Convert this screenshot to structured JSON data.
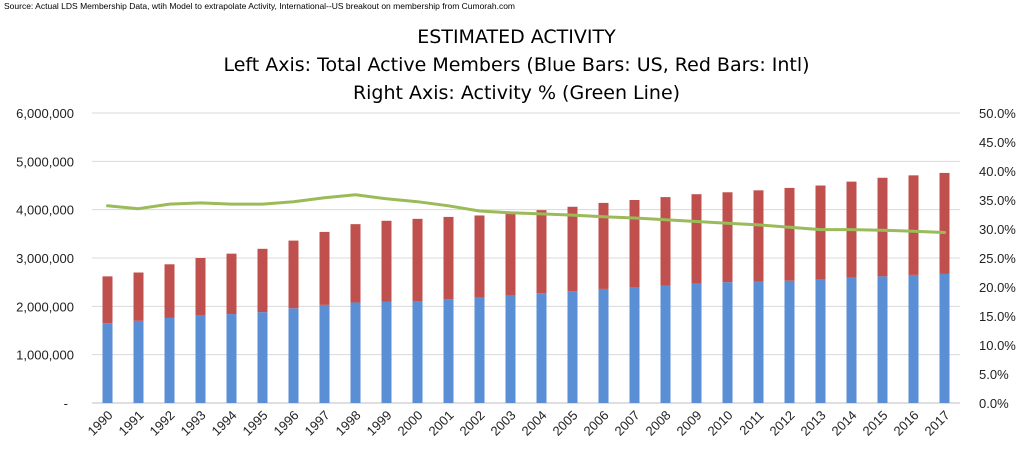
{
  "source_note": "Source: Actual LDS Membership Data, wtih Model to extrapolate Activity, International--US breakout on membership from Cumorah.com",
  "title_lines": [
    "ESTIMATED ACTIVITY",
    "Left Axis: Total Active Members (Blue Bars: US, Red Bars: Intl)",
    "Right Axis: Activity % (Green Line)"
  ],
  "colors": {
    "us": "#5b8fd5",
    "intl": "#c0504d",
    "activity": "#9bbb59",
    "grid": "#d9d9d9",
    "axis": "#bfbfbf"
  },
  "chart_data": {
    "type": "bar",
    "stacked": true,
    "title": "ESTIMATED ACTIVITY",
    "categories": [
      "1990",
      "1991",
      "1992",
      "1993",
      "1994",
      "1995",
      "1996",
      "1997",
      "1998",
      "1999",
      "2000",
      "2001",
      "2002",
      "2003",
      "2004",
      "2005",
      "2006",
      "2007",
      "2008",
      "2009",
      "2010",
      "2011",
      "2012",
      "2013",
      "2014",
      "2015",
      "2016",
      "2017"
    ],
    "series": [
      {
        "name": "US",
        "type": "bar",
        "axis": "left",
        "values": [
          1650000,
          1700000,
          1760000,
          1820000,
          1840000,
          1880000,
          1960000,
          2030000,
          2080000,
          2100000,
          2110000,
          2150000,
          2180000,
          2220000,
          2270000,
          2310000,
          2360000,
          2400000,
          2430000,
          2470000,
          2500000,
          2510000,
          2530000,
          2550000,
          2590000,
          2620000,
          2650000,
          2670000
        ]
      },
      {
        "name": "Intl",
        "type": "bar",
        "axis": "left",
        "values": [
          970000,
          1000000,
          1110000,
          1180000,
          1250000,
          1310000,
          1400000,
          1510000,
          1620000,
          1670000,
          1700000,
          1700000,
          1700000,
          1710000,
          1720000,
          1750000,
          1780000,
          1800000,
          1830000,
          1850000,
          1860000,
          1890000,
          1920000,
          1950000,
          1990000,
          2040000,
          2060000,
          2090000
        ]
      },
      {
        "name": "Activity %",
        "type": "line",
        "axis": "right",
        "values": [
          34.0,
          33.5,
          34.3,
          34.5,
          34.3,
          34.3,
          34.7,
          35.4,
          35.9,
          35.2,
          34.7,
          34.0,
          33.1,
          32.8,
          32.6,
          32.4,
          32.1,
          31.9,
          31.6,
          31.3,
          31.0,
          30.7,
          30.3,
          29.9,
          29.9,
          29.8,
          29.6,
          29.4
        ]
      }
    ],
    "y_left": {
      "min": 0,
      "max": 6000000,
      "ticks": [
        "-",
        "1,000,000",
        "2,000,000",
        "3,000,000",
        "4,000,000",
        "5,000,000",
        "6,000,000"
      ]
    },
    "y_right": {
      "min": 0,
      "max": 50,
      "ticks": [
        "0.0%",
        "5.0%",
        "10.0%",
        "15.0%",
        "20.0%",
        "25.0%",
        "30.0%",
        "35.0%",
        "40.0%",
        "45.0%",
        "50.0%"
      ]
    },
    "grid": true,
    "legend": "none"
  }
}
